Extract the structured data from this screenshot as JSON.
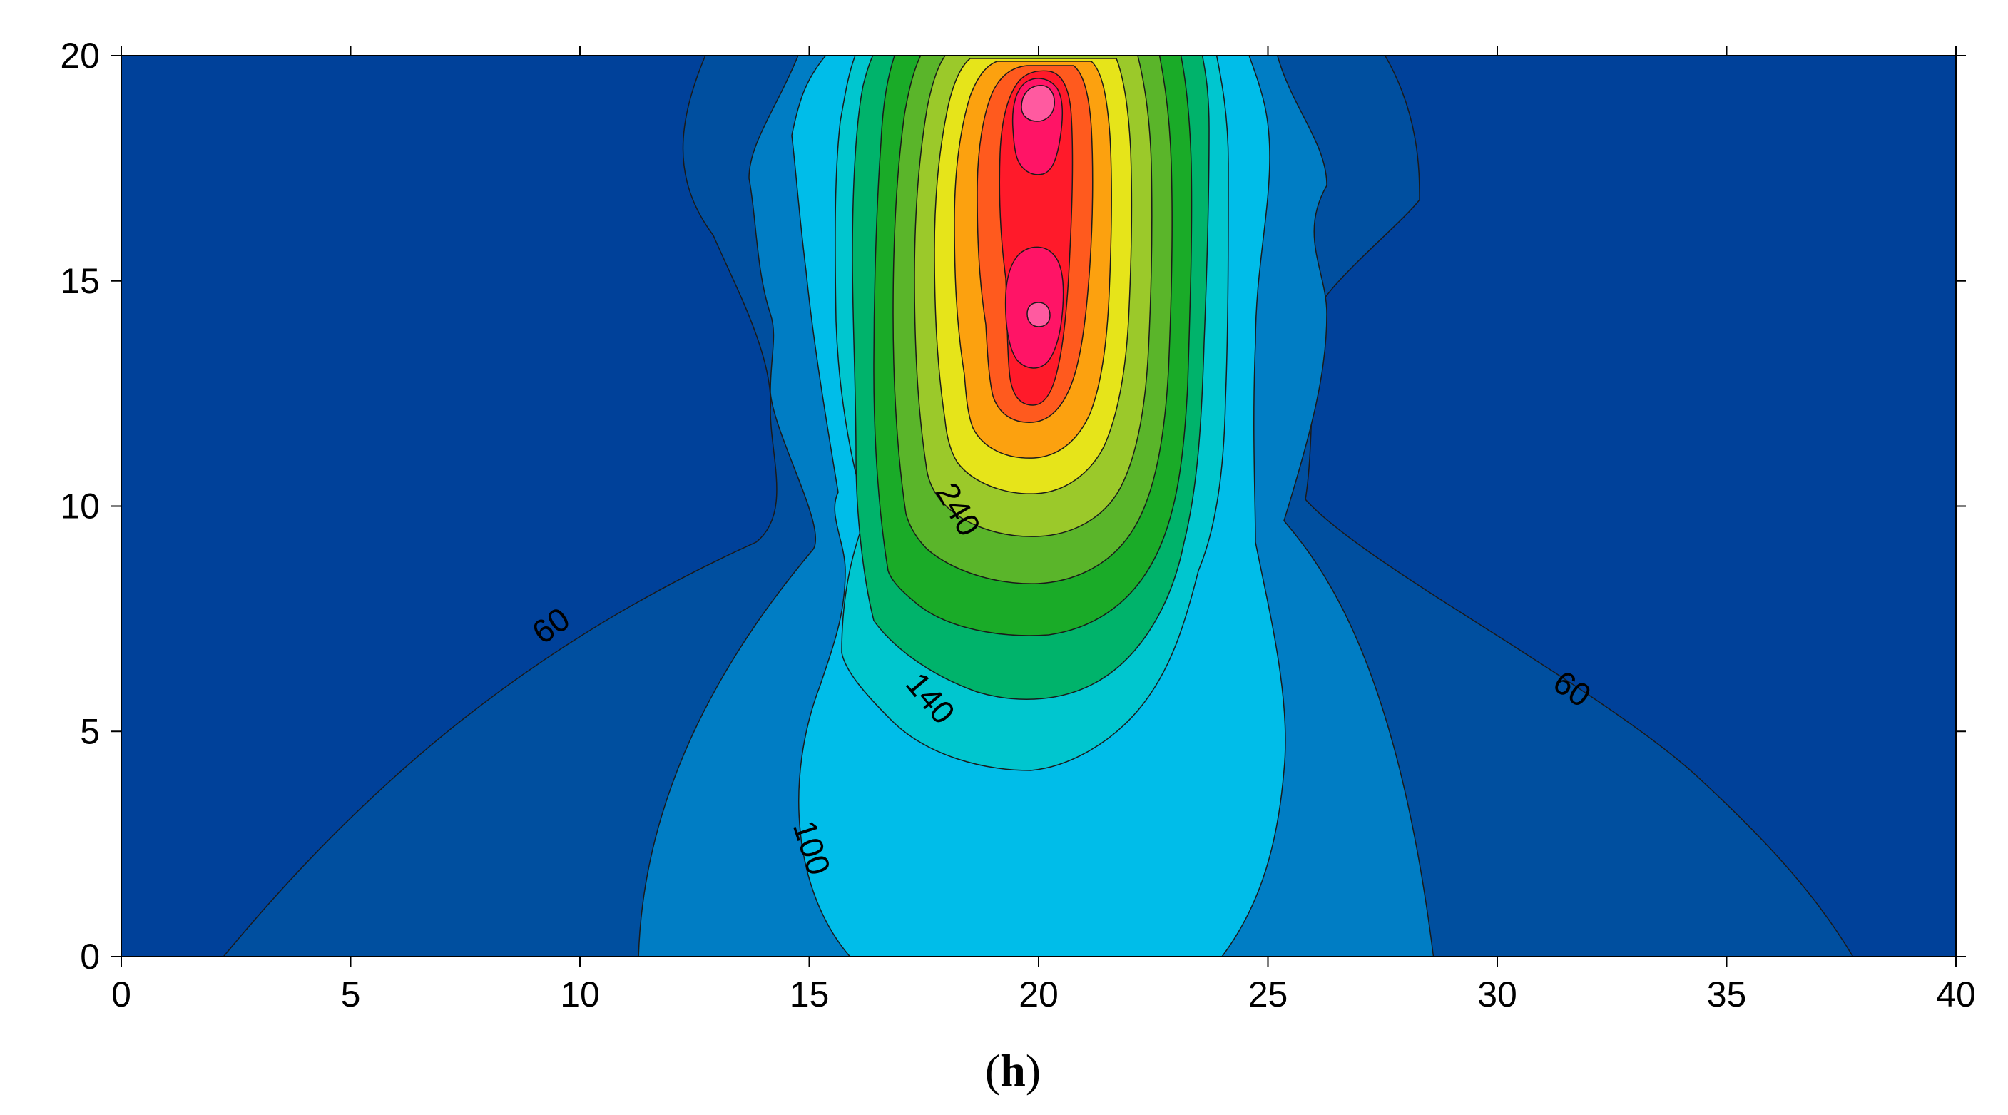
{
  "chart_data": {
    "type": "contour",
    "caption": {
      "open": "(",
      "letter": "h",
      "close": ")"
    },
    "xlim": [
      0,
      40
    ],
    "ylim": [
      0,
      20
    ],
    "x_ticks": [
      0,
      5,
      10,
      15,
      20,
      25,
      30,
      35,
      40
    ],
    "y_ticks": [
      0,
      5,
      10,
      15,
      20
    ],
    "x_tick_labels": [
      "0",
      "5",
      "10",
      "15",
      "20",
      "25",
      "30",
      "35",
      "40"
    ],
    "y_tick_labels": [
      "0",
      "5",
      "10",
      "15",
      "20"
    ],
    "levels": [
      60,
      80,
      100,
      120,
      140,
      160,
      180,
      200,
      220,
      240,
      260,
      280,
      300
    ],
    "level_colors": [
      "#00419a",
      "#004f9f",
      "#007dc4",
      "#00bde9",
      "#00c6cf",
      "#00b36b",
      "#1aab28",
      "#5ab52a",
      "#9bc92a",
      "#e6e41a",
      "#fca10f",
      "#ff5a1e",
      "#ff1a2a",
      "#ff1466"
    ],
    "contour_labels": [
      {
        "text": "60",
        "x": 9.4,
        "y": 7.3
      },
      {
        "text": "60",
        "x": 31.6,
        "y": 5.9
      },
      {
        "text": "100",
        "x": 15.0,
        "y": 2.4
      },
      {
        "text": "140",
        "x": 17.6,
        "y": 5.7
      },
      {
        "text": "240",
        "x": 18.2,
        "y": 9.9
      }
    ]
  }
}
